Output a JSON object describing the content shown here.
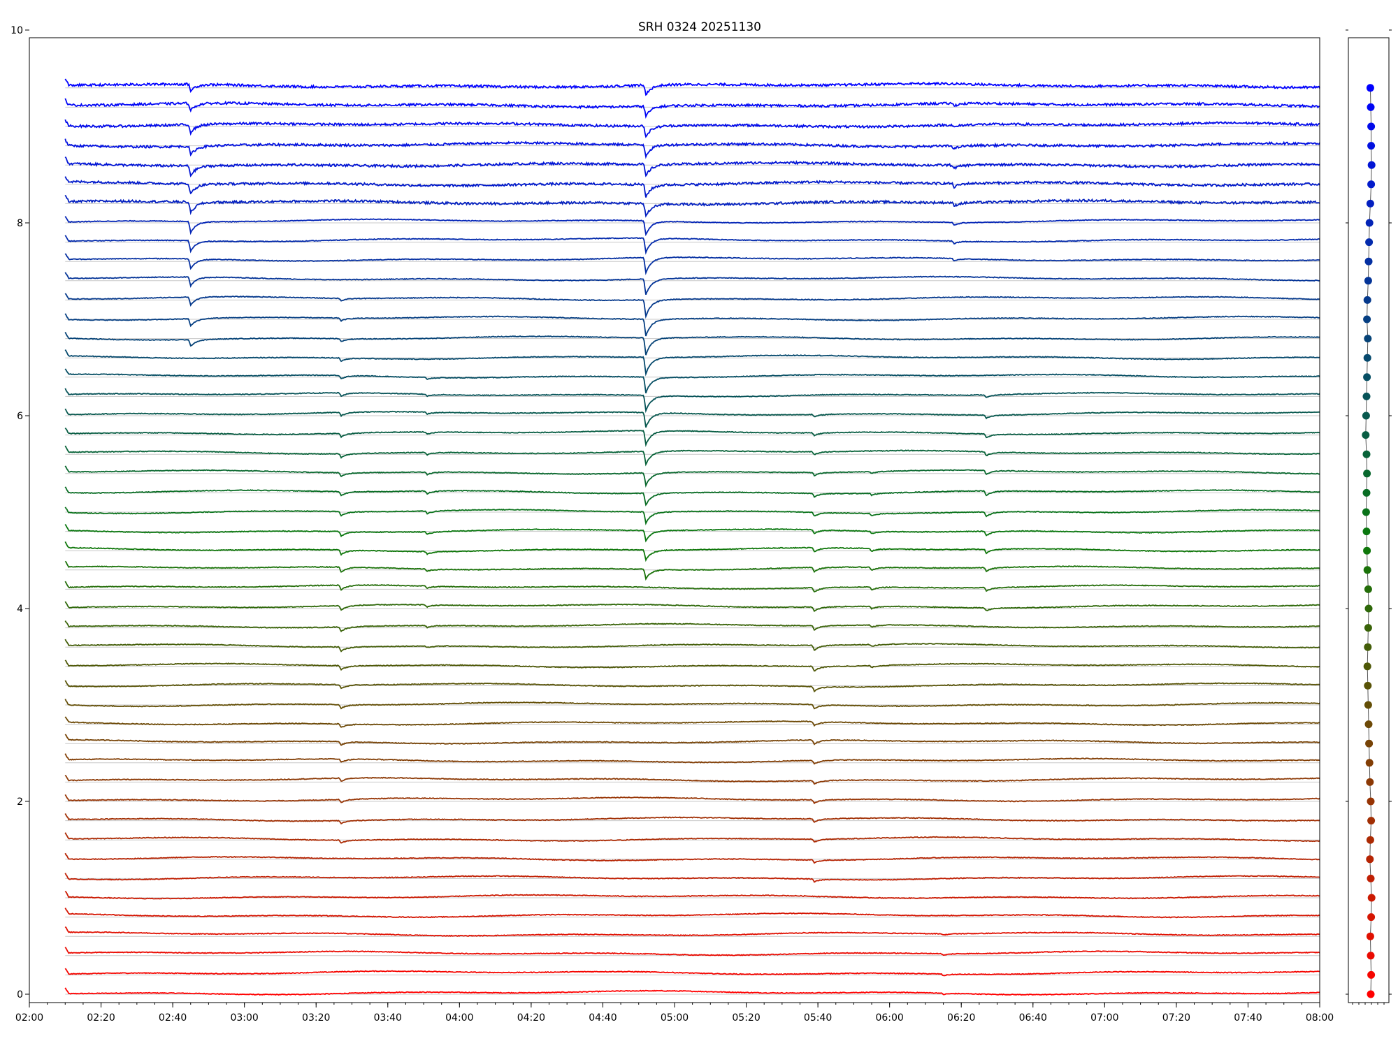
{
  "chart_data": [
    {
      "type": "line",
      "title": "SRH 0324 20251130",
      "xlabel": "",
      "ylabel": "",
      "xlim": [
        "02:00",
        "08:00"
      ],
      "ylim": [
        0,
        10
      ],
      "x_tick_labels": [
        "02:00",
        "02:20",
        "02:40",
        "03:00",
        "03:20",
        "03:40",
        "04:00",
        "04:20",
        "04:40",
        "05:00",
        "05:20",
        "05:40",
        "06:00",
        "06:20",
        "06:40",
        "07:00",
        "07:20",
        "07:40",
        "08:00"
      ],
      "y_tick_labels": [
        "0",
        "2",
        "4",
        "6",
        "8",
        "10"
      ],
      "data_start": "02:10",
      "data_end": "08:00",
      "grid": "baseline per trace",
      "series_count": 48,
      "series_spacing": 0.2,
      "color_start": "#ff0000",
      "color_mid": "#0a7a0a",
      "color_end": "#0000ff",
      "events": [
        {
          "time": "02:45",
          "depth": 0.12,
          "traces": [
            34,
            47
          ]
        },
        {
          "time": "03:27",
          "depth": 0.05,
          "traces": [
            8,
            36
          ]
        },
        {
          "time": "03:51",
          "depth": 0.03,
          "traces": [
            18,
            32
          ]
        },
        {
          "time": "04:52",
          "depth": 0.18,
          "traces": [
            22,
            47
          ]
        },
        {
          "time": "05:39",
          "depth": 0.05,
          "traces": [
            6,
            30
          ]
        },
        {
          "time": "05:55",
          "depth": 0.03,
          "traces": [
            17,
            27
          ]
        },
        {
          "time": "06:15",
          "depth": 0.02,
          "traces": [
            0,
            3
          ]
        },
        {
          "time": "06:18",
          "depth": 0.04,
          "traces": [
            38,
            46
          ]
        },
        {
          "time": "06:27",
          "depth": 0.05,
          "traces": [
            20,
            31
          ]
        }
      ]
    },
    {
      "type": "scatter",
      "title": "",
      "xlabel": "",
      "ylabel": "",
      "ylim": [
        0,
        10
      ],
      "x": [
        0.05,
        0.06,
        0.05,
        0.04,
        0.06,
        0.07,
        0.05,
        0.03,
        0.04,
        0.06,
        0.05,
        0.03,
        0.02,
        0.01,
        0.0,
        -0.01,
        -0.02,
        -0.03,
        -0.02,
        -0.01,
        0.0,
        -0.01,
        -0.03,
        -0.04,
        -0.05,
        -0.06,
        -0.05,
        -0.04,
        -0.05,
        -0.07,
        -0.06,
        -0.05,
        -0.04,
        -0.03,
        -0.02,
        -0.04,
        -0.03,
        -0.01,
        0.0,
        0.01,
        0.02,
        0.04,
        0.06,
        0.07,
        0.06,
        0.06,
        0.05,
        0.04
      ],
      "y": [
        0.0,
        0.2,
        0.4,
        0.6,
        0.8,
        1.0,
        1.2,
        1.4,
        1.6,
        1.8,
        2.0,
        2.2,
        2.4,
        2.6,
        2.8,
        3.0,
        3.2,
        3.4,
        3.6,
        3.8,
        4.0,
        4.2,
        4.4,
        4.6,
        4.8,
        5.0,
        5.2,
        5.4,
        5.6,
        5.8,
        6.0,
        6.2,
        6.4,
        6.6,
        6.8,
        7.0,
        7.2,
        7.4,
        7.6,
        7.8,
        8.0,
        8.2,
        8.4,
        8.6,
        8.8,
        9.0,
        9.2,
        9.4
      ]
    }
  ]
}
